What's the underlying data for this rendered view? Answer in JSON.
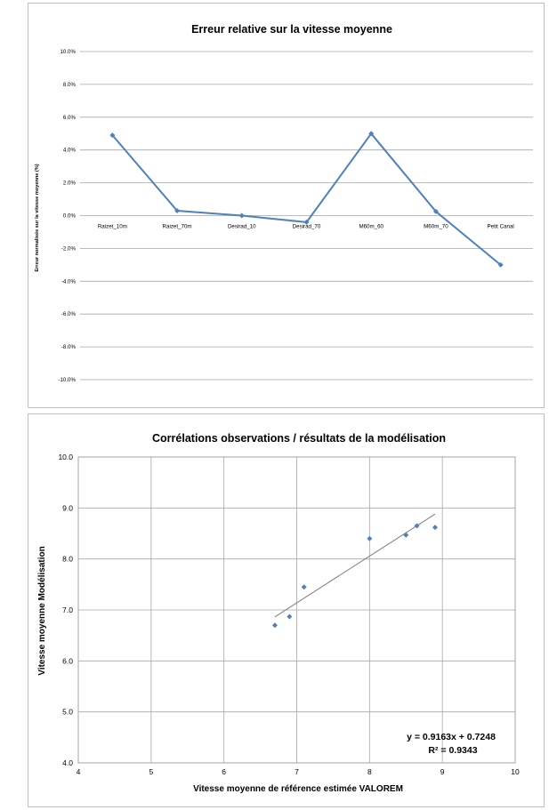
{
  "chart_data": [
    {
      "type": "line",
      "title": "Erreur relative sur la vitesse moyenne",
      "ylabel": "Erreur normalisée sur la vitesse moyenne (%)",
      "xlabel": "",
      "categories": [
        "Raizet_10m",
        "Raizet_70m",
        "Desirad_10",
        "Desirad_70",
        "M60m_60",
        "M60m_70",
        "Petit Canal"
      ],
      "series": [
        {
          "values": [
            4.9,
            0.3,
            0.0,
            -0.4,
            5.0,
            0.25,
            -3.0
          ]
        }
      ],
      "ylim": [
        -10,
        10
      ],
      "yticks": [
        "10.0%",
        "8.0%",
        "6.0%",
        "4.0%",
        "2.0%",
        "0.0%",
        "-2.0%",
        "-4.0%",
        "-6.0%",
        "-8.0%",
        "-10.0%"
      ],
      "grid": "horizontal",
      "colors": {
        "line": "#4f81bd",
        "grid": "#a6a6a6"
      }
    },
    {
      "type": "scatter",
      "title": "Corrélations observations / résultats de la modélisation",
      "xlabel": "Vitesse moyenne de référence estimée VALOREM",
      "ylabel": "Vitesse moyenne Modélisation",
      "xlim": [
        4,
        10
      ],
      "ylim": [
        4,
        10
      ],
      "xticks": [
        "4",
        "5",
        "6",
        "7",
        "8",
        "9",
        "10"
      ],
      "yticks": [
        "10.0",
        "9.0",
        "8.0",
        "7.0",
        "6.0",
        "5.0",
        "4.0"
      ],
      "points": [
        {
          "x": 6.7,
          "y": 6.7
        },
        {
          "x": 6.9,
          "y": 6.87
        },
        {
          "x": 7.1,
          "y": 7.45
        },
        {
          "x": 8.0,
          "y": 8.4
        },
        {
          "x": 8.5,
          "y": 8.47
        },
        {
          "x": 8.65,
          "y": 8.65
        },
        {
          "x": 8.9,
          "y": 8.62
        }
      ],
      "trendline": {
        "slope": 0.9163,
        "intercept": 0.7248,
        "x_range": [
          6.7,
          8.9
        ]
      },
      "annotation": {
        "equation": "y = 0.9163x + 0.7248",
        "r_squared": "R² = 0.9343"
      },
      "grid": "both",
      "colors": {
        "points": "#4f81bd",
        "trendline": "#7f7f7f",
        "grid": "#a6a6a6"
      }
    }
  ]
}
